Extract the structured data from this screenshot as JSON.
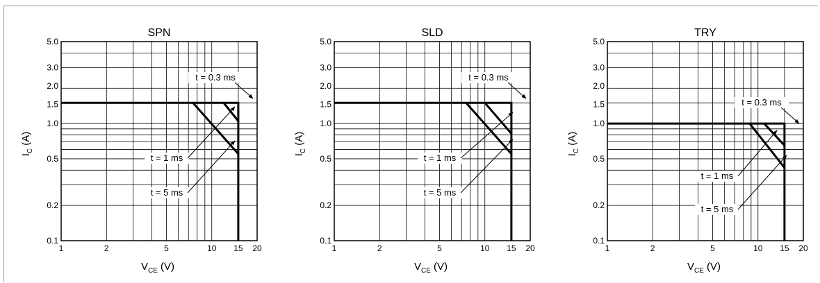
{
  "chart_data": [
    {
      "type": "line",
      "title": "SPN",
      "xlabel": {
        "main": "V",
        "sub": "CE",
        "unit": "(V)"
      },
      "ylabel": {
        "main": "I",
        "sub": "C",
        "unit": "(A)"
      },
      "x_scale": "log",
      "y_scale": "log",
      "xlim": [
        1,
        20
      ],
      "ylim": [
        0.1,
        5.0
      ],
      "grid": true,
      "x_ticks": [
        {
          "v": 1,
          "l": "1"
        },
        {
          "v": 2,
          "l": "2"
        },
        {
          "v": 5,
          "l": "5"
        },
        {
          "v": 10,
          "l": "10"
        },
        {
          "v": 15,
          "l": "15"
        },
        {
          "v": 20,
          "l": "20"
        }
      ],
      "y_ticks": [
        {
          "v": 0.1,
          "l": "0.1"
        },
        {
          "v": 0.2,
          "l": "0.2"
        },
        {
          "v": 0.5,
          "l": "0.5"
        },
        {
          "v": 1.0,
          "l": "1.0"
        },
        {
          "v": 1.5,
          "l": "1.5"
        },
        {
          "v": 2.0,
          "l": "2.0"
        },
        {
          "v": 3.0,
          "l": "3.0"
        },
        {
          "v": 5.0,
          "l": "5.0"
        }
      ],
      "series": [
        {
          "label": "t = 0.3 ms",
          "points": [
            [
              1,
              1.5
            ],
            [
              15,
              1.5
            ],
            [
              15,
              0.1
            ]
          ]
        },
        {
          "label": "t = 1 ms",
          "points": [
            [
              12,
              1.5
            ],
            [
              15,
              1.05
            ]
          ]
        },
        {
          "label": "t = 5 ms",
          "points": [
            [
              7.5,
              1.5
            ],
            [
              15,
              0.55
            ]
          ]
        }
      ],
      "annotations": [
        {
          "text": "t = 0.3 ms",
          "series": 0
        },
        {
          "text": "t = 1 ms",
          "series": 1
        },
        {
          "text": "t = 5 ms",
          "series": 2
        }
      ]
    },
    {
      "type": "line",
      "title": "SLD",
      "xlabel": {
        "main": "V",
        "sub": "CE",
        "unit": "(V)"
      },
      "ylabel": {
        "main": "I",
        "sub": "C",
        "unit": "(A)"
      },
      "x_scale": "log",
      "y_scale": "log",
      "xlim": [
        1,
        20
      ],
      "ylim": [
        0.1,
        5.0
      ],
      "grid": true,
      "x_ticks": [
        {
          "v": 1,
          "l": "1"
        },
        {
          "v": 2,
          "l": "2"
        },
        {
          "v": 5,
          "l": "5"
        },
        {
          "v": 10,
          "l": "10"
        },
        {
          "v": 15,
          "l": "15"
        },
        {
          "v": 20,
          "l": "20"
        }
      ],
      "y_ticks": [
        {
          "v": 0.1,
          "l": "0.1"
        },
        {
          "v": 0.2,
          "l": "0.2"
        },
        {
          "v": 0.5,
          "l": "0.5"
        },
        {
          "v": 1.0,
          "l": "1.0"
        },
        {
          "v": 1.5,
          "l": "1.5"
        },
        {
          "v": 2.0,
          "l": "2.0"
        },
        {
          "v": 3.0,
          "l": "3.0"
        },
        {
          "v": 5.0,
          "l": "5.0"
        }
      ],
      "series": [
        {
          "label": "t = 0.3 ms",
          "points": [
            [
              1,
              1.5
            ],
            [
              15,
              1.5
            ],
            [
              15,
              0.1
            ]
          ]
        },
        {
          "label": "t = 1 ms",
          "points": [
            [
              10,
              1.5
            ],
            [
              15,
              0.82
            ]
          ]
        },
        {
          "label": "t = 5 ms",
          "points": [
            [
              7.5,
              1.5
            ],
            [
              15,
              0.55
            ]
          ]
        }
      ],
      "annotations": [
        {
          "text": "t = 0.3 ms",
          "series": 0
        },
        {
          "text": "t = 1 ms",
          "series": 1
        },
        {
          "text": "t = 5 ms",
          "series": 2
        }
      ]
    },
    {
      "type": "line",
      "title": "TRY",
      "xlabel": {
        "main": "V",
        "sub": "CE",
        "unit": "(V)"
      },
      "ylabel": {
        "main": "I",
        "sub": "C",
        "unit": "(A)"
      },
      "x_scale": "log",
      "y_scale": "log",
      "xlim": [
        1,
        20
      ],
      "ylim": [
        0.1,
        5.0
      ],
      "grid": true,
      "x_ticks": [
        {
          "v": 1,
          "l": "1"
        },
        {
          "v": 2,
          "l": "2"
        },
        {
          "v": 5,
          "l": "5"
        },
        {
          "v": 10,
          "l": "10"
        },
        {
          "v": 15,
          "l": "15"
        },
        {
          "v": 20,
          "l": "20"
        }
      ],
      "y_ticks": [
        {
          "v": 0.1,
          "l": "0.1"
        },
        {
          "v": 0.2,
          "l": "0.2"
        },
        {
          "v": 0.5,
          "l": "0.5"
        },
        {
          "v": 1.0,
          "l": "1.0"
        },
        {
          "v": 1.5,
          "l": "1.5"
        },
        {
          "v": 2.0,
          "l": "2.0"
        },
        {
          "v": 3.0,
          "l": "3.0"
        },
        {
          "v": 5.0,
          "l": "5.0"
        }
      ],
      "series": [
        {
          "label": "t = 0.3 ms",
          "points": [
            [
              1,
              1.0
            ],
            [
              15,
              1.0
            ],
            [
              15,
              0.1
            ]
          ]
        },
        {
          "label": "t = 1 ms",
          "points": [
            [
              11,
              1.0
            ],
            [
              15,
              0.65
            ]
          ]
        },
        {
          "label": "t = 5 ms",
          "points": [
            [
              8.8,
              1.0
            ],
            [
              15,
              0.42
            ]
          ]
        }
      ],
      "annotations": [
        {
          "text": "t = 0.3 ms",
          "series": 0
        },
        {
          "text": "t = 1 ms",
          "series": 1
        },
        {
          "text": "t = 5 ms",
          "series": 2
        }
      ]
    }
  ]
}
